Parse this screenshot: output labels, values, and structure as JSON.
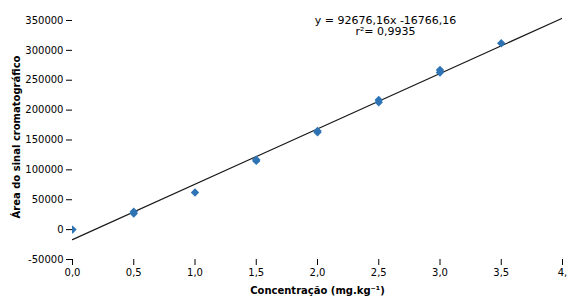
{
  "chart_data": {
    "type": "scatter",
    "xlabel": "Concentração (mg.kg⁻¹)",
    "ylabel": "Área do sinal cromatográfico",
    "xlim": [
      0.0,
      4.0
    ],
    "ylim": [
      -50000,
      360000
    ],
    "xticks": [
      {
        "value": 0.0,
        "label": "0,0"
      },
      {
        "value": 0.5,
        "label": "0,5"
      },
      {
        "value": 1.0,
        "label": "1,0"
      },
      {
        "value": 1.5,
        "label": "1,5"
      },
      {
        "value": 2.0,
        "label": "2,0"
      },
      {
        "value": 2.5,
        "label": "2,5"
      },
      {
        "value": 3.0,
        "label": "3,0"
      },
      {
        "value": 3.5,
        "label": "3,5"
      },
      {
        "value": 4.0,
        "label": "4,"
      }
    ],
    "yticks": [
      -50000,
      0,
      50000,
      100000,
      150000,
      200000,
      250000,
      300000,
      350000
    ],
    "grid": false,
    "series": [
      {
        "type": "line",
        "color": "#1a1a1a",
        "x": [
          0.0,
          4.0
        ],
        "values": [
          -16766.16,
          353938.48
        ]
      },
      {
        "type": "scatter",
        "color": "#2E74B5",
        "marker": "diamond",
        "x": [
          0.0,
          0.5,
          0.5,
          1.0,
          1.5,
          1.5,
          2.0,
          2.0,
          2.5,
          2.5,
          3.0,
          3.0,
          3.5
        ],
        "values": [
          0,
          27000,
          30000,
          62000,
          115000,
          117000,
          163000,
          165000,
          213000,
          217000,
          263000,
          267000,
          312000
        ]
      }
    ],
    "annotations": [
      "y = 92676,16x -16766,16",
      "r²= 0,9935"
    ]
  }
}
